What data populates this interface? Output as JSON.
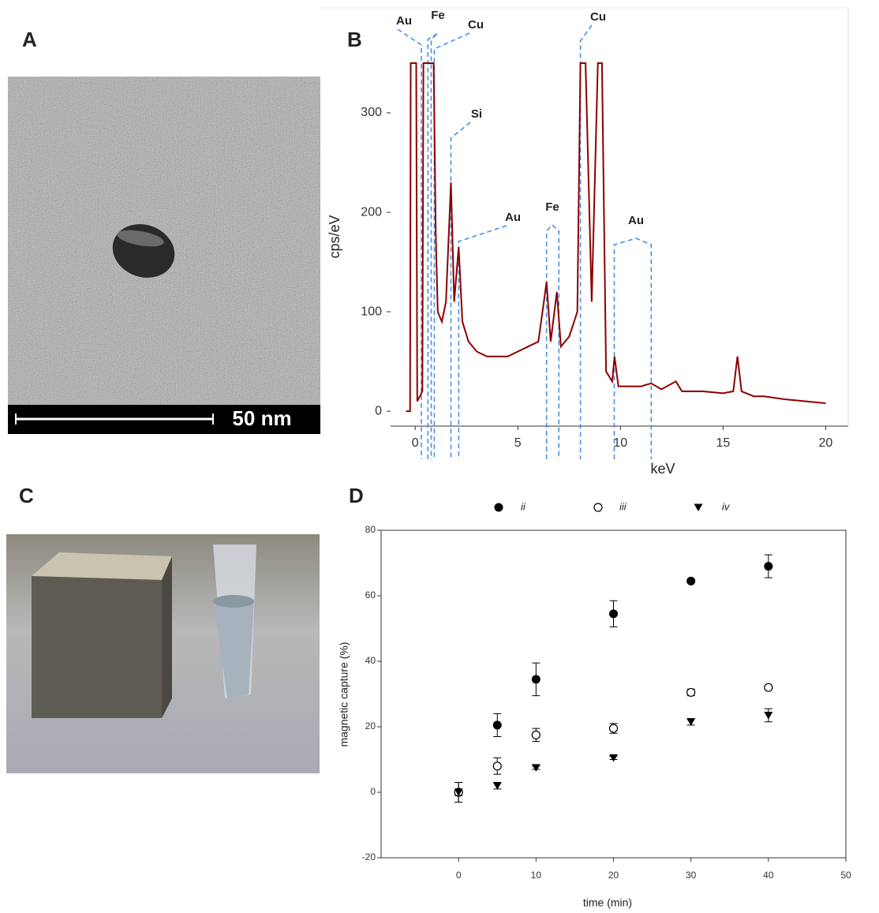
{
  "panel_labels": [
    "A",
    "B",
    "C",
    "D"
  ],
  "scale_bar": "50 nm",
  "chart_data": [
    {
      "type": "line",
      "xlabel": "keV",
      "ylabel": "cps/eV",
      "color": "#8b0000",
      "annotations": [
        "Au",
        "Fe",
        "Cu",
        "Si",
        "Au",
        "Fe",
        "Cu",
        "Au"
      ],
      "xlim": [
        -1.2,
        21.1
      ],
      "ylim": [
        -15,
        350
      ],
      "xticks": [
        0,
        5,
        10,
        15,
        20
      ],
      "yticks": [
        0,
        100,
        200,
        300
      ],
      "x": [
        -0.45,
        -0.25,
        -0.22,
        0.05,
        0.1,
        0.35,
        0.4,
        0.9,
        1.0,
        1.1,
        1.3,
        1.5,
        1.74,
        1.9,
        2.12,
        2.3,
        2.6,
        3,
        3.5,
        4,
        4.5,
        5,
        5.5,
        6,
        6.4,
        6.6,
        6.9,
        7.1,
        7.5,
        7.9,
        8.05,
        8.3,
        8.6,
        8.9,
        9.1,
        9.3,
        9.6,
        9.71,
        9.9,
        10.5,
        11,
        11.5,
        12,
        12.7,
        13,
        14,
        15,
        15.5,
        15.7,
        15.9,
        16.5,
        17,
        18,
        19,
        20
      ],
      "values": [
        0,
        0,
        350,
        350,
        10,
        20,
        350,
        350,
        180,
        100,
        90,
        110,
        230,
        110,
        165,
        90,
        70,
        60,
        55,
        55,
        55,
        60,
        65,
        70,
        130,
        70,
        120,
        65,
        75,
        100,
        350,
        350,
        110,
        350,
        350,
        40,
        30,
        55,
        25,
        25,
        25,
        28,
        22,
        30,
        20,
        20,
        18,
        20,
        55,
        20,
        15,
        15,
        12,
        10,
        8
      ]
    },
    {
      "type": "scatter",
      "xlabel": "time (min)",
      "ylabel": "magnetic capture (%)",
      "xlim": [
        -10,
        50
      ],
      "ylim": [
        -20,
        80
      ],
      "xticks": [
        0,
        10,
        20,
        30,
        40,
        50
      ],
      "yticks": [
        -20,
        0,
        20,
        40,
        60,
        80
      ],
      "x": [
        0,
        5,
        10,
        20,
        30,
        40
      ],
      "series": [
        {
          "name": "ii",
          "marker": "filled-circle",
          "color": "#000000",
          "values": [
            0,
            20.5,
            34.5,
            54.5,
            64.5,
            69
          ],
          "errors": [
            3,
            3.5,
            5,
            4,
            0.5,
            3.5
          ]
        },
        {
          "name": "iii",
          "marker": "open-circle",
          "color": "#000000",
          "values": [
            0,
            8,
            17.5,
            19.5,
            30.5,
            32
          ],
          "errors": [
            3,
            2.5,
            2,
            1.5,
            1,
            0.5
          ]
        },
        {
          "name": "iv",
          "marker": "filled-triangle-down",
          "color": "#000000",
          "values": [
            0,
            2,
            7.5,
            10.5,
            21.5,
            23.5
          ],
          "errors": [
            1,
            1,
            0.5,
            0.5,
            1,
            2
          ]
        }
      ]
    }
  ]
}
